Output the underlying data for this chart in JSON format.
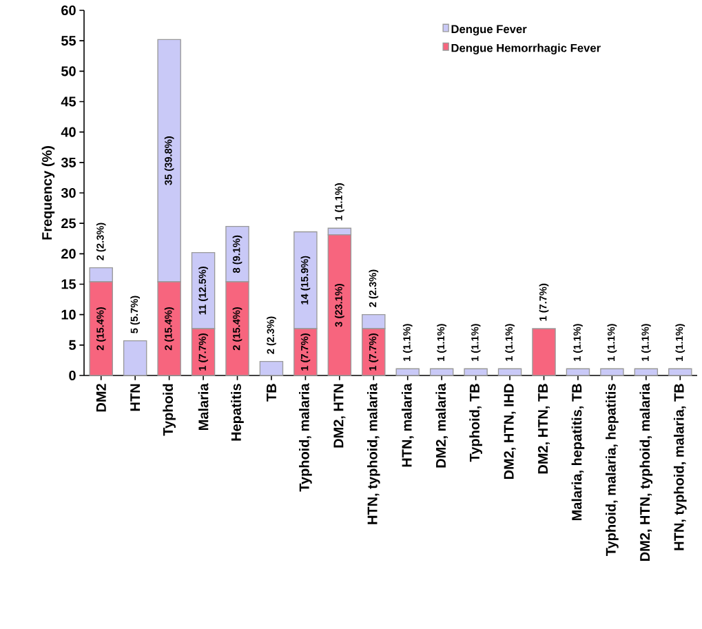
{
  "chart_data": {
    "type": "bar",
    "stacked": true,
    "ylabel": "Frequency (%)",
    "categories": [
      "DM2",
      "HTN",
      "Typhoid",
      "Malaria",
      "Hepatitis",
      "TB",
      "Typhoid, malaria",
      "DM2, HTN",
      "HTN, typhoid, malaria",
      "HTN, malaria",
      "DM2, malaria",
      "Typhoid, TB",
      "DM2, HTN, IHD",
      "DM2, HTN, TB",
      "Malaria, hepatitis, TB",
      "Typhoid, malaria, hepatitis",
      "DM2, HTN, typhoid, malaria",
      "HTN, typhoid, malaria, TB"
    ],
    "series": [
      {
        "name": "Dengue Hemorrhagic Fever",
        "color": "#f7657e",
        "values": [
          15.4,
          0,
          15.4,
          7.7,
          15.4,
          0,
          7.7,
          23.1,
          7.7,
          0,
          0,
          0,
          0,
          7.7,
          0,
          0,
          0,
          0
        ],
        "value_labels": [
          "2 (15.4%)",
          null,
          "2 (15.4%)",
          "1 (7.7%)",
          "2 (15.4%)",
          null,
          "1 (7.7%)",
          "3 (23.1%)",
          "1 (7.7%)",
          null,
          null,
          null,
          null,
          "1 (7.7%)",
          null,
          null,
          null,
          null
        ]
      },
      {
        "name": "Dengue Fever",
        "color": "#c9c9f7",
        "values": [
          2.3,
          5.7,
          39.8,
          12.5,
          9.1,
          2.3,
          15.9,
          1.1,
          2.3,
          1.1,
          1.1,
          1.1,
          1.1,
          0,
          1.1,
          1.1,
          1.1,
          1.1
        ],
        "value_labels": [
          "2 (2.3%)",
          "5 (5.7%)",
          "35 (39.8%)",
          "11 (12.5%)",
          "8 (9.1%)",
          "2 (2.3%)",
          "14 (15.9%)",
          "1 (1.1%)",
          "2 (2.3%)",
          "1 (1.1%)",
          "1 (1.1%)",
          "1 (1.1%)",
          "1 (1.1%)",
          null,
          "1 (1.1%)",
          "1 (1.1%)",
          "1 (1.1%)",
          "1 (1.1%)"
        ]
      }
    ],
    "ylim": [
      0,
      60
    ],
    "yticks": [
      0,
      5,
      10,
      15,
      20,
      25,
      30,
      35,
      40,
      45,
      50,
      55,
      60
    ],
    "legend": "top right"
  }
}
